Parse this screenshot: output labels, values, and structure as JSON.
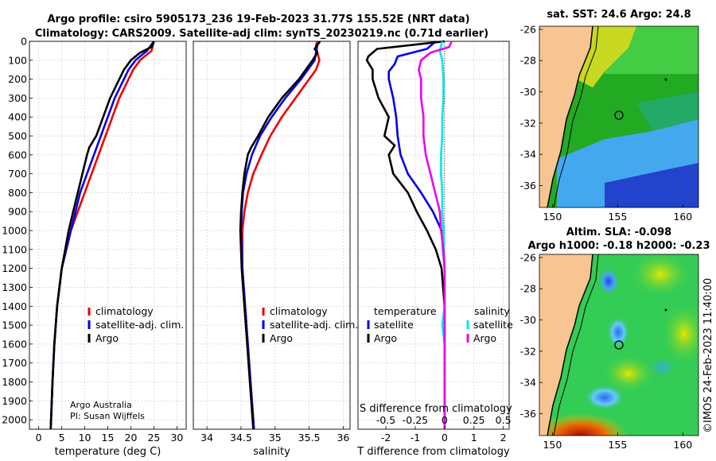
{
  "header": {
    "line1": "Argo profile: csiro 5905173_236 19-Feb-2023 31.77S 155.52E (NRT data)",
    "line2": "Climatology: CARS2009. Satellite-adj clim: synTS_20230219.nc (0.71d earlier)"
  },
  "credits": {
    "line1": "Argo Australia",
    "line2": "PI: Susan Wijffels",
    "imos": "©IMOS 24-Feb-2023 11:40:00"
  },
  "colors": {
    "climatology": "#ee0000",
    "satellite": "#0000ee",
    "argo": "#000000",
    "salt_satellite": "#00e5ee",
    "salt_argo": "#ee00ee",
    "land": "#f7c492"
  },
  "maps": {
    "sst": {
      "title": "sat. SST: 24.6 Argo: 24.8"
    },
    "sla": {
      "title1": "Altim. SLA: -0.098",
      "title2": "Argo h1000: -0.18 h2000: -0.23"
    },
    "xticks": [
      "150",
      "155",
      "160"
    ],
    "yticks": [
      "-26",
      "-28",
      "-30",
      "-32",
      "-34",
      "-36"
    ]
  },
  "chart_data": [
    {
      "type": "line",
      "title": "",
      "xlabel": "temperature (deg C)",
      "ylabel": "",
      "xlim": [
        -2,
        32
      ],
      "ylim": [
        2050,
        0
      ],
      "xticks": [
        "0",
        "5",
        "10",
        "15",
        "20",
        "25",
        "30"
      ],
      "yticks": [
        "0",
        "100",
        "200",
        "300",
        "400",
        "500",
        "600",
        "700",
        "800",
        "900",
        "1000",
        "1100",
        "1200",
        "1300",
        "1400",
        "1500",
        "1600",
        "1700",
        "1800",
        "1900",
        "2000"
      ],
      "legend": [
        "climatology",
        "satellite-adj. clim.",
        "Argo"
      ],
      "series": [
        {
          "name": "climatology",
          "depth": [
            0,
            50,
            100,
            150,
            200,
            300,
            400,
            500,
            600,
            700,
            800,
            900,
            1000,
            1200,
            1400,
            1600,
            1800,
            2000,
            2050
          ],
          "values": [
            25,
            24.5,
            22,
            20.5,
            19.5,
            17.5,
            16,
            14.5,
            13,
            11.5,
            10,
            8.5,
            7,
            5,
            4,
            3.4,
            3,
            2.7,
            2.6
          ]
        },
        {
          "name": "satellite-adj. clim.",
          "depth": [
            0,
            50,
            100,
            150,
            200,
            300,
            400,
            500,
            600,
            700,
            800,
            900,
            1000,
            1200,
            1400,
            1600,
            1800,
            2000,
            2050
          ],
          "values": [
            25,
            23.5,
            21,
            19.5,
            18.5,
            16.5,
            15,
            13.5,
            12,
            10.5,
            9,
            8,
            7,
            5,
            4,
            3.4,
            3,
            2.7,
            2.6
          ]
        },
        {
          "name": "Argo",
          "depth": [
            0,
            30,
            60,
            100,
            150,
            200,
            300,
            400,
            500,
            560,
            600,
            700,
            800,
            900,
            1000,
            1200,
            1400,
            1600,
            1800,
            2000,
            2050
          ],
          "values": [
            25,
            24.5,
            22,
            20,
            18.5,
            17.5,
            15.5,
            14,
            12.5,
            11,
            10.5,
            9.5,
            8.5,
            7.5,
            6.5,
            5,
            4,
            3.4,
            3,
            2.7,
            2.6
          ]
        }
      ]
    },
    {
      "type": "line",
      "title": "",
      "xlabel": "salinity",
      "ylabel": "",
      "xlim": [
        33.8,
        36.1
      ],
      "ylim": [
        2050,
        0
      ],
      "xticks": [
        "34",
        "34.5",
        "35",
        "35.5",
        "36"
      ],
      "legend": [
        "climatology",
        "satellite-adj. clim.",
        "Argo"
      ],
      "series": [
        {
          "name": "climatology",
          "depth": [
            0,
            20,
            60,
            100,
            150,
            200,
            300,
            400,
            500,
            600,
            700,
            800,
            900,
            1000,
            1200,
            1400,
            1600,
            1800,
            2000,
            2050
          ],
          "values": [
            35.62,
            35.6,
            35.62,
            35.65,
            35.6,
            35.5,
            35.3,
            35.1,
            34.93,
            34.8,
            34.68,
            34.6,
            34.55,
            34.52,
            34.52,
            34.56,
            34.6,
            34.64,
            34.68,
            34.69
          ]
        },
        {
          "name": "satellite-adj. clim.",
          "depth": [
            0,
            20,
            60,
            100,
            150,
            200,
            300,
            400,
            500,
            600,
            700,
            800,
            900,
            1000,
            1200,
            1400,
            1600,
            1800,
            2000,
            2050
          ],
          "values": [
            35.65,
            35.62,
            35.6,
            35.58,
            35.48,
            35.38,
            35.15,
            34.95,
            34.78,
            34.66,
            34.58,
            34.53,
            34.51,
            34.5,
            34.52,
            34.56,
            34.6,
            34.64,
            34.68,
            34.69
          ]
        },
        {
          "name": "Argo",
          "depth": [
            0,
            20,
            40,
            60,
            100,
            150,
            200,
            300,
            400,
            500,
            560,
            600,
            700,
            800,
            900,
            1000,
            1200,
            1400,
            1600,
            1800,
            2000,
            2050
          ],
          "values": [
            35.66,
            35.62,
            35.58,
            35.62,
            35.55,
            35.45,
            35.35,
            35.1,
            34.9,
            34.75,
            34.65,
            34.6,
            34.55,
            34.52,
            34.5,
            34.49,
            34.51,
            34.55,
            34.59,
            34.63,
            34.67,
            34.68
          ]
        }
      ]
    },
    {
      "type": "line",
      "title": "",
      "xlabel": "T difference from climatology",
      "xlabel2": "S difference from climatology",
      "ylabel": "",
      "xlim": [
        -2.95,
        2.2
      ],
      "ylim": [
        2050,
        0
      ],
      "xticks": [
        "-2",
        "-1",
        "0",
        "1",
        "2"
      ],
      "xticks2": [
        "-0.5",
        "-0.25",
        "0",
        "0.25",
        "0.5"
      ],
      "legend_titles": [
        "temperature",
        "salinity"
      ],
      "legend": [
        "satellite",
        "Argo",
        "satellite",
        "Argo"
      ],
      "series": [
        {
          "name": "temperature satellite",
          "depth": [
            0,
            40,
            80,
            120,
            160,
            200,
            300,
            400,
            500,
            600,
            700,
            800,
            900,
            1000,
            1200,
            1400,
            1600,
            1800,
            2000,
            2050
          ],
          "values": [
            -0.3,
            -0.6,
            -1.6,
            -1.7,
            -1.9,
            -1.9,
            -1.75,
            -1.65,
            -1.6,
            -1.5,
            -1.25,
            -0.8,
            -0.4,
            -0.1,
            0,
            0,
            0,
            0,
            0,
            0
          ]
        },
        {
          "name": "temperature Argo",
          "depth": [
            0,
            40,
            80,
            100,
            150,
            200,
            300,
            400,
            500,
            550,
            600,
            700,
            800,
            900,
            1000,
            1100,
            1200,
            1400,
            1600,
            1800,
            2000,
            2050
          ],
          "values": [
            0,
            -2.3,
            -2.6,
            -2.65,
            -2.45,
            -2.45,
            -2.25,
            -1.9,
            -2.05,
            -1.7,
            -1.9,
            -1.75,
            -1.25,
            -0.95,
            -0.6,
            -0.3,
            -0.1,
            0,
            0,
            0,
            0,
            0
          ]
        },
        {
          "name": "salinity satellite",
          "depth": [
            0,
            50,
            100,
            200,
            300,
            400,
            500,
            600,
            700,
            800,
            900,
            1000,
            1200,
            1400,
            1500,
            1600,
            1800,
            2000,
            2050
          ],
          "values": [
            -0.02,
            -0.04,
            -0.02,
            -0.01,
            -0.01,
            -0.02,
            -0.02,
            -0.03,
            -0.03,
            -0.02,
            -0.02,
            -0.01,
            0,
            0,
            -0.02,
            0,
            0,
            0,
            0
          ]
        },
        {
          "name": "salinity Argo",
          "depth": [
            0,
            30,
            60,
            100,
            150,
            200,
            300,
            400,
            500,
            600,
            700,
            800,
            900,
            1000,
            1100,
            1200,
            1400,
            1600,
            1800,
            2000,
            2050
          ],
          "values": [
            0.06,
            0.04,
            -0.12,
            -0.2,
            -0.22,
            -0.2,
            -0.2,
            -0.18,
            -0.18,
            -0.16,
            -0.12,
            -0.08,
            -0.04,
            -0.03,
            -0.01,
            0,
            0,
            0,
            0,
            0,
            0
          ]
        }
      ]
    }
  ]
}
